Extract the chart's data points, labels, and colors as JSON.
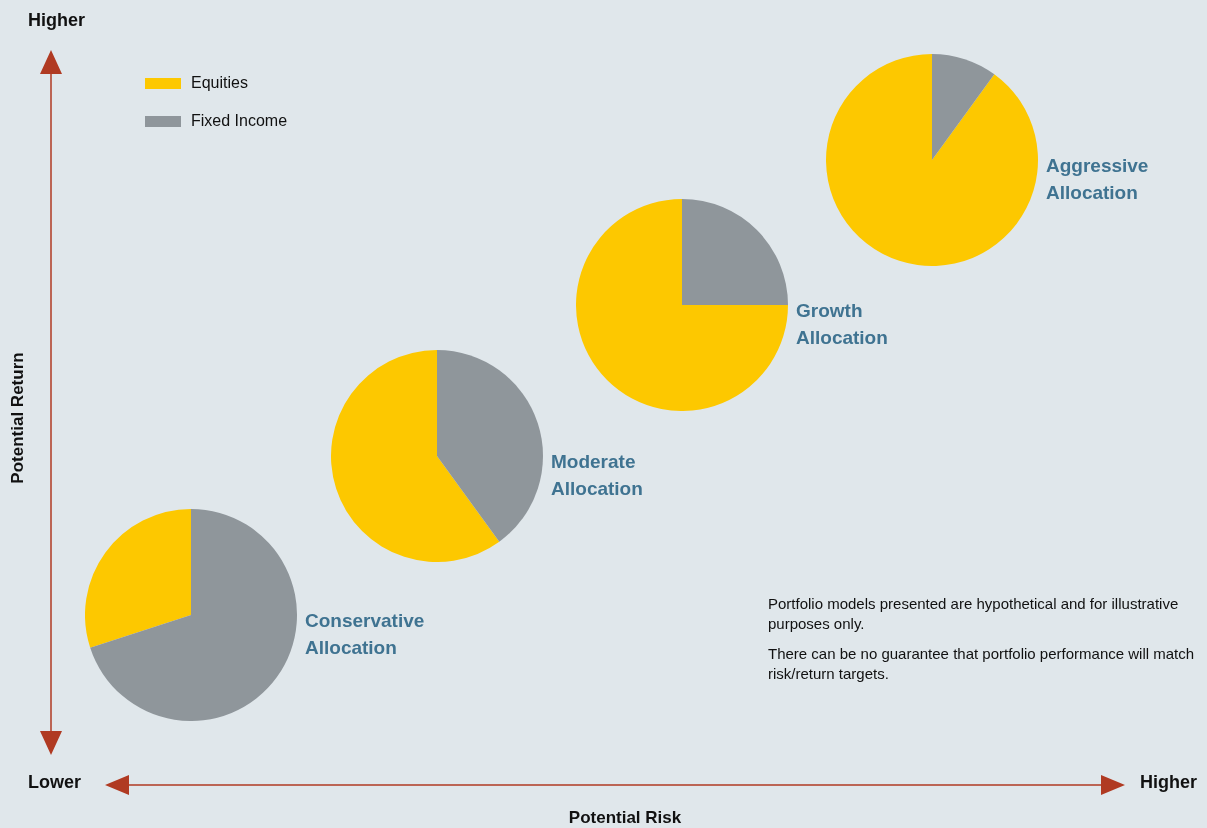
{
  "chart_data": [
    {
      "type": "pie",
      "title": "Conservative Allocation",
      "categories": [
        "Equities",
        "Fixed Income"
      ],
      "values": [
        30,
        70
      ],
      "colors": [
        "#fdc800",
        "#8f969b"
      ],
      "legend": "top right"
    },
    {
      "type": "pie",
      "title": "Moderate Allocation",
      "categories": [
        null,
        null
      ],
      "values": [
        60,
        40
      ],
      "colors": [
        "#fdc800",
        "#8f969b"
      ]
    },
    {
      "type": "pie",
      "title": "Growth Allocation",
      "categories": [
        null,
        null
      ],
      "values": [
        75,
        25
      ],
      "colors": [
        "#fdc800",
        "#8f969b"
      ]
    },
    {
      "type": "pie",
      "title": "Aggressive Allocation",
      "categories": [
        null,
        null
      ],
      "values": [
        90,
        10
      ],
      "colors": [
        "#fdc800",
        "#8f969b"
      ]
    },
    {
      "type": "other",
      "xlabel": "Potential Risk",
      "ylabel": "Potential Return",
      "annotations": [
        "Higher",
        "Lower",
        "Higher",
        "Portfolio models presented are hypothetical and for illustrative purposes only.",
        "There can be no guarantee that portfolio performance will match risk/return targets."
      ]
    }
  ]
}
